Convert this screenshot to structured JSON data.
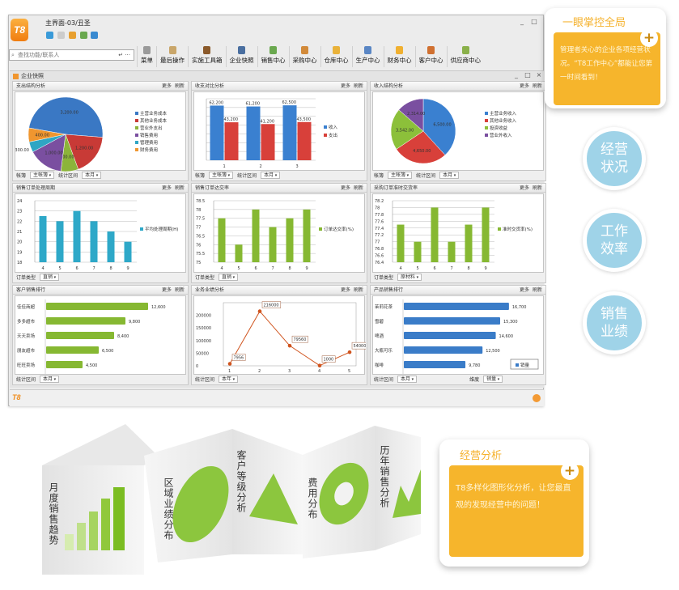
{
  "window": {
    "title": "主界面-03/丑圣",
    "logo": "T8",
    "quick_icons": [
      "chat-icon",
      "document-icon",
      "flag-icon",
      "calendar-icon",
      "user-icon"
    ],
    "controls": [
      "_",
      "□",
      "×"
    ],
    "search_placeholder": "查找功能/联系人",
    "toolbar": [
      "菜单",
      "最后操作",
      "实施工具箱",
      "企业快照",
      "销售中心",
      "采购中心",
      "仓库中心",
      "生产中心",
      "财务中心",
      "客户中心",
      "供应商中心"
    ],
    "toolbar_colors": [
      "#9a9a9a",
      "#c9a66a",
      "#8b5a2b",
      "#4a6fa0",
      "#6aa84f",
      "#d28a3a",
      "#e9b23a",
      "#5a86c4",
      "#f0b030",
      "#d07030",
      "#8ab04a"
    ],
    "inner_title": "企业快照",
    "inner_controls": [
      "_",
      "□",
      "×"
    ],
    "status_logo": "T8"
  },
  "panel_actions": {
    "more": "更多",
    "refresh": "刷新"
  },
  "panels": [
    {
      "title": "支出结构分析",
      "footer": [
        {
          "label": "帐簿",
          "value": "主帐簿"
        },
        {
          "label": "统计区间",
          "value": "本月"
        }
      ]
    },
    {
      "title": "收支对比分析",
      "footer": [
        {
          "label": "帐簿",
          "value": "主帐簿"
        },
        {
          "label": "统计区间",
          "value": "本月"
        }
      ]
    },
    {
      "title": "收入结构分析",
      "footer": [
        {
          "label": "帐簿",
          "value": "主帐簿"
        },
        {
          "label": "统计区间",
          "value": "本月"
        }
      ]
    },
    {
      "title": "销售订单处理周期",
      "footer": [
        {
          "label": "订单类型",
          "value": "直销"
        }
      ]
    },
    {
      "title": "销售订单达交率",
      "footer": [
        {
          "label": "订单类型",
          "value": "直销"
        }
      ]
    },
    {
      "title": "采购订单准时交货率",
      "footer": [
        {
          "label": "订单类型",
          "value": "原材料"
        }
      ]
    },
    {
      "title": "客户销售排行",
      "footer": [
        {
          "label": "统计区间",
          "value": "本月"
        }
      ]
    },
    {
      "title": "业务业绩分析",
      "footer": [
        {
          "label": "统计区间",
          "value": "本年"
        }
      ]
    },
    {
      "title": "产品销售排行",
      "footer": [
        {
          "label": "统计区间",
          "value": "本月"
        },
        {
          "label": "维度",
          "value": "销量"
        }
      ]
    }
  ],
  "chart_data": [
    {
      "type": "pie",
      "categories": [
        "主营业务成本",
        "其他业务成本",
        "营业外支出",
        "销售费用",
        "管理费用",
        "财务费用"
      ],
      "values": [
        3200,
        1200,
        500,
        1000,
        300,
        400
      ],
      "colors": [
        "#3a78c4",
        "#c83a36",
        "#8cb43a",
        "#7a4fa0",
        "#2fa6c4",
        "#f0962f"
      ],
      "legend": "right"
    },
    {
      "type": "bar",
      "categories": [
        "1",
        "2",
        "3"
      ],
      "series": [
        {
          "name": "收入",
          "values": [
            62200,
            61200,
            62500
          ],
          "color": "#3a80d0"
        },
        {
          "name": "支出",
          "values": [
            43200,
            41200,
            43500
          ],
          "color": "#d8403a"
        }
      ],
      "ylim": [
        0,
        70000
      ],
      "grid": true,
      "legend": "right"
    },
    {
      "type": "pie",
      "categories": [
        "主营业务收入",
        "其他业务收入",
        "投资收益",
        "营业外收入"
      ],
      "values": [
        6500,
        4650,
        3542,
        2314
      ],
      "colors": [
        "#3a80d0",
        "#d8403a",
        "#8cc03a",
        "#7a4fa0"
      ],
      "legend": "right"
    },
    {
      "type": "bar",
      "categories": [
        "4",
        "5",
        "6",
        "7",
        "8",
        "9"
      ],
      "series": [
        {
          "name": "平均处理周期(H)",
          "values": [
            22.5,
            22,
            23,
            22,
            21,
            20
          ],
          "color": "#2ea8c8"
        }
      ],
      "ylim": [
        18,
        24
      ],
      "yticks": [
        18,
        19,
        20,
        21,
        22,
        23,
        24
      ],
      "grid": true,
      "legend": "right"
    },
    {
      "type": "bar",
      "categories": [
        "4",
        "5",
        "6",
        "7",
        "8",
        "9"
      ],
      "series": [
        {
          "name": "订单达交率(%)",
          "values": [
            77.5,
            76,
            78,
            77,
            77.5,
            78
          ],
          "color": "#86b832"
        }
      ],
      "ylim": [
        75,
        78.5
      ],
      "yticks": [
        75,
        75.5,
        76,
        76.5,
        77,
        77.5,
        78,
        78.5
      ],
      "grid": true,
      "legend": "right"
    },
    {
      "type": "bar",
      "categories": [
        "4",
        "5",
        "6",
        "7",
        "8",
        "9"
      ],
      "series": [
        {
          "name": "准时交货率(%)",
          "values": [
            77.5,
            77,
            78,
            77,
            77.5,
            78
          ],
          "color": "#86b832"
        }
      ],
      "ylim": [
        76.4,
        78.2
      ],
      "yticks": [
        76.4,
        76.6,
        76.8,
        77,
        77.2,
        77.4,
        77.6,
        77.8,
        78,
        78.2
      ],
      "grid": true,
      "legend": "right"
    },
    {
      "type": "hbar",
      "categories": [
        "佳佳商超",
        "多多超市",
        "天天卖场",
        "朋友超市",
        "旺旺卖场"
      ],
      "values": [
        12600,
        9800,
        8400,
        6500,
        4500
      ],
      "color": "#86b832",
      "xmax": 14000
    },
    {
      "type": "line",
      "x": [
        1,
        2,
        3,
        4,
        5
      ],
      "values": [
        7956,
        216000,
        79560,
        1000,
        54000
      ],
      "ylim": [
        0,
        250000
      ],
      "yticks": [
        0,
        50000,
        100000,
        150000,
        200000
      ],
      "color": "#d0541e"
    },
    {
      "type": "hbar",
      "categories": [
        "茉莉花茶",
        "雪碧",
        "啤酒",
        "大瓶可乐",
        "咖啡"
      ],
      "values": [
        16700,
        15300,
        14600,
        12500,
        9780
      ],
      "color": "#3a7cc8",
      "xmax": 18000,
      "series_name": "销量",
      "legend": "bottom-right"
    }
  ],
  "callout_top": {
    "title": "一眼掌控全局",
    "text": "管理者关心的企业各项经营状况。“T8工作中心”都能让您第一时间看到！"
  },
  "features": [
    "经营状况",
    "工作效率",
    "销售业绩"
  ],
  "feature_color": "#9fd3e8",
  "folds": [
    "月度销售趋势",
    "区域业绩分布",
    "客户等级分析",
    "费用分布",
    "历年销售分析"
  ],
  "callout_bottom": {
    "title": "经营分析",
    "text": "T8多样化图形化分析，让您最直观的发现经营中的问题！"
  },
  "accent": "#f6b52c"
}
